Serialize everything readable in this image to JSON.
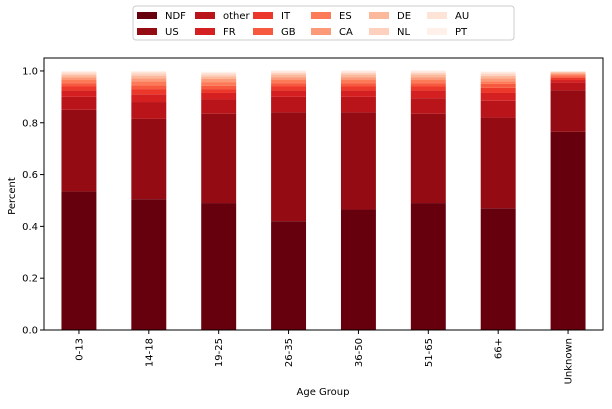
{
  "chart_data": {
    "type": "bar",
    "stacked": true,
    "title": "",
    "xlabel": "Age Group",
    "ylabel": "Percent",
    "ylim": [
      0,
      1.05
    ],
    "yticks": [
      0.0,
      0.2,
      0.4,
      0.6,
      0.8,
      1.0
    ],
    "ytick_labels": [
      "0.0",
      "0.2",
      "0.4",
      "0.6",
      "0.8",
      "1.0"
    ],
    "categories": [
      "0-13",
      "14-18",
      "19-25",
      "26-35",
      "36-50",
      "51-65",
      "66+",
      "Unknown"
    ],
    "legend_position": "top-center",
    "series": [
      {
        "name": "NDF",
        "color": "#67000d",
        "values": [
          0.535,
          0.505,
          0.49,
          0.42,
          0.465,
          0.49,
          0.47,
          0.765
        ]
      },
      {
        "name": "US",
        "color": "#940b13",
        "values": [
          0.315,
          0.31,
          0.345,
          0.42,
          0.375,
          0.345,
          0.35,
          0.16
        ]
      },
      {
        "name": "other",
        "color": "#b81419",
        "values": [
          0.05,
          0.065,
          0.055,
          0.06,
          0.06,
          0.06,
          0.065,
          0.03
        ]
      },
      {
        "name": "FR",
        "color": "#d42020",
        "values": [
          0.025,
          0.03,
          0.025,
          0.025,
          0.025,
          0.03,
          0.03,
          0.01
        ]
      },
      {
        "name": "IT",
        "color": "#ec382b",
        "values": [
          0.015,
          0.02,
          0.015,
          0.015,
          0.015,
          0.015,
          0.02,
          0.008
        ]
      },
      {
        "name": "GB",
        "color": "#f7593f",
        "values": [
          0.013,
          0.015,
          0.013,
          0.013,
          0.013,
          0.013,
          0.015,
          0.007
        ]
      },
      {
        "name": "ES",
        "color": "#fc7a57",
        "values": [
          0.012,
          0.015,
          0.014,
          0.012,
          0.012,
          0.012,
          0.01,
          0.006
        ]
      },
      {
        "name": "CA",
        "color": "#fc9979",
        "values": [
          0.01,
          0.012,
          0.012,
          0.011,
          0.011,
          0.011,
          0.011,
          0.005
        ]
      },
      {
        "name": "DE",
        "color": "#fcb89a",
        "values": [
          0.009,
          0.01,
          0.01,
          0.01,
          0.01,
          0.01,
          0.01,
          0.003
        ]
      },
      {
        "name": "NL",
        "color": "#fdd1bd",
        "values": [
          0.007,
          0.008,
          0.008,
          0.007,
          0.007,
          0.007,
          0.007,
          0.002
        ]
      },
      {
        "name": "AU",
        "color": "#fee3d7",
        "values": [
          0.005,
          0.006,
          0.006,
          0.005,
          0.005,
          0.005,
          0.006,
          0.002
        ]
      },
      {
        "name": "PT",
        "color": "#fff0e9",
        "values": [
          0.004,
          0.004,
          0.004,
          0.004,
          0.004,
          0.004,
          0.004,
          0.002
        ]
      }
    ]
  }
}
